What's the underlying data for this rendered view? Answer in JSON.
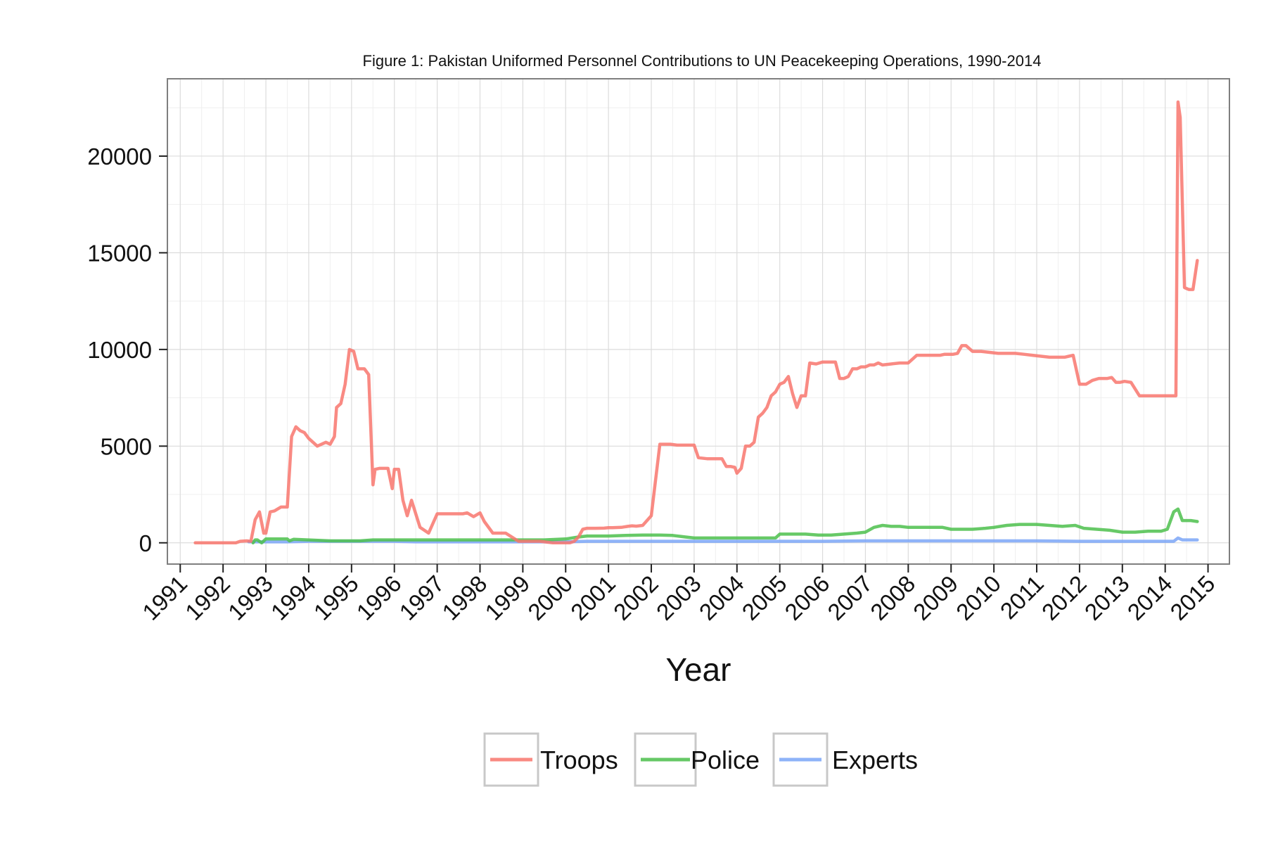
{
  "chart_data": {
    "type": "line",
    "title": "Figure 1: Pakistan Uniformed Personnel Contributions to UN Peacekeeping Operations, 1990-2014",
    "xlabel": "Year",
    "ylabel": "",
    "xlim": [
      1990.7,
      2015.5
    ],
    "ylim": [
      -1100,
      24000
    ],
    "x_ticks": [
      "1991",
      "1992",
      "1993",
      "1994",
      "1995",
      "1996",
      "1997",
      "1998",
      "1999",
      "2000",
      "2001",
      "2002",
      "2003",
      "2004",
      "2005",
      "2006",
      "2007",
      "2008",
      "2009",
      "2010",
      "2011",
      "2012",
      "2013",
      "2014",
      "2015"
    ],
    "y_ticks": [
      "0",
      "5000",
      "10000",
      "15000",
      "20000"
    ],
    "grid": true,
    "legend_position": "bottom",
    "series": [
      {
        "name": "Troops",
        "color": "#f8766d",
        "x": [
          1991.35,
          1991.8,
          1992.2,
          1992.3,
          1992.4,
          1992.55,
          1992.65,
          1992.75,
          1992.85,
          1992.95,
          1993.0,
          1993.1,
          1993.2,
          1993.35,
          1993.4,
          1993.5,
          1993.6,
          1993.7,
          1993.8,
          1993.9,
          1994.0,
          1994.1,
          1994.2,
          1994.3,
          1994.4,
          1994.5,
          1994.6,
          1994.65,
          1994.75,
          1994.85,
          1994.95,
          1995.05,
          1995.15,
          1995.25,
          1995.3,
          1995.4,
          1995.5,
          1995.55,
          1995.65,
          1995.75,
          1995.85,
          1995.95,
          1996.0,
          1996.1,
          1996.2,
          1996.3,
          1996.4,
          1996.6,
          1996.8,
          1997.0,
          1997.2,
          1997.3,
          1997.4,
          1997.5,
          1997.6,
          1997.7,
          1997.85,
          1998.0,
          1998.1,
          1998.3,
          1998.6,
          1998.9,
          1999.1,
          1999.4,
          1999.7,
          2000.0,
          2000.1,
          2000.2,
          2000.3,
          2000.4,
          2000.5,
          2000.7,
          2000.9,
          2001.0,
          2001.1,
          2001.3,
          2001.45,
          2001.55,
          2001.65,
          2001.8,
          2002.0,
          2002.2,
          2002.35,
          2002.45,
          2002.6,
          2002.8,
          2003.0,
          2003.1,
          2003.3,
          2003.45,
          2003.55,
          2003.65,
          2003.75,
          2003.85,
          2003.95,
          2004.0,
          2004.1,
          2004.2,
          2004.3,
          2004.4,
          2004.5,
          2004.6,
          2004.7,
          2004.8,
          2004.9,
          2005.0,
          2005.1,
          2005.2,
          2005.3,
          2005.4,
          2005.5,
          2005.6,
          2005.7,
          2005.85,
          2006.0,
          2006.1,
          2006.2,
          2006.3,
          2006.4,
          2006.5,
          2006.6,
          2006.7,
          2006.8,
          2006.9,
          2007.0,
          2007.1,
          2007.2,
          2007.3,
          2007.4,
          2007.6,
          2007.8,
          2008.0,
          2008.2,
          2008.4,
          2008.6,
          2008.75,
          2008.85,
          2008.95,
          2009.05,
          2009.15,
          2009.25,
          2009.35,
          2009.5,
          2009.7,
          2009.9,
          2010.1,
          2010.3,
          2010.5,
          2010.7,
          2010.9,
          2011.1,
          2011.3,
          2011.45,
          2011.55,
          2011.65,
          2011.75,
          2011.85,
          2012.0,
          2012.15,
          2012.3,
          2012.45,
          2012.55,
          2012.65,
          2012.75,
          2012.85,
          2012.95,
          2013.05,
          2013.2,
          2013.4,
          2013.6,
          2013.8,
          2013.95,
          2014.05,
          2014.15,
          2014.25,
          2014.3,
          2014.35,
          2014.45,
          2014.55,
          2014.65,
          2014.75
        ],
        "values": [
          0,
          0,
          0,
          0,
          80,
          100,
          80,
          1200,
          1600,
          500,
          500,
          1600,
          1650,
          1850,
          1850,
          1850,
          5500,
          6000,
          5800,
          5700,
          5400,
          5200,
          5000,
          5100,
          5200,
          5100,
          5500,
          7000,
          7200,
          8200,
          10000,
          9900,
          9000,
          9000,
          9000,
          8700,
          3000,
          3800,
          3850,
          3850,
          3850,
          2800,
          3800,
          3800,
          2200,
          1400,
          2200,
          800,
          500,
          1500,
          1500,
          1500,
          1500,
          1500,
          1500,
          1550,
          1350,
          1550,
          1100,
          500,
          500,
          80,
          80,
          80,
          0,
          0,
          0,
          80,
          300,
          700,
          750,
          750,
          760,
          780,
          780,
          800,
          850,
          880,
          860,
          900,
          1400,
          5100,
          5100,
          5100,
          5050,
          5050,
          5050,
          4400,
          4350,
          4350,
          4350,
          4350,
          3950,
          3950,
          3900,
          3600,
          3850,
          5000,
          5000,
          5200,
          6500,
          6700,
          7000,
          7600,
          7800,
          8200,
          8300,
          8600,
          7700,
          7000,
          7600,
          7600,
          9300,
          9250,
          9350,
          9350,
          9350,
          9350,
          8500,
          8500,
          8600,
          9000,
          9000,
          9100,
          9100,
          9200,
          9200,
          9300,
          9200,
          9250,
          9300,
          9300,
          9700,
          9700,
          9700,
          9700,
          9750,
          9750,
          9750,
          9800,
          10200,
          10200,
          9900,
          9900,
          9850,
          9800,
          9800,
          9800,
          9750,
          9700,
          9650,
          9600,
          9600,
          9600,
          9600,
          9650,
          9700,
          8200,
          8200,
          8400,
          8500,
          8500,
          8500,
          8550,
          8300,
          8300,
          8350,
          8300,
          7600,
          7600,
          7600,
          7600,
          7600,
          7600,
          7600,
          22800,
          22000,
          13200,
          13100,
          13100,
          14600
        ]
      },
      {
        "name": "Police",
        "color": "#4cbf4c",
        "x": [
          1992.7,
          1992.75,
          1992.8,
          1992.9,
          1993.0,
          1993.2,
          1993.5,
          1993.55,
          1993.65,
          1994.5,
          1994.7,
          1994.9,
          1995.0,
          1995.2,
          1995.5,
          1995.9,
          1996.4,
          1996.5,
          1997.0,
          1997.5,
          1997.9,
          1998.5,
          1999.0,
          1999.5,
          2000.0,
          2000.3,
          2000.5,
          2000.8,
          2001.0,
          2001.4,
          2001.8,
          2002.2,
          2002.5,
          2002.8,
          2003.0,
          2003.5,
          2004.0,
          2004.5,
          2004.9,
          2005.0,
          2005.3,
          2005.6,
          2005.9,
          2006.2,
          2006.5,
          2006.8,
          2007.0,
          2007.2,
          2007.4,
          2007.6,
          2007.8,
          2008.0,
          2008.4,
          2008.8,
          2009.0,
          2009.2,
          2009.5,
          2009.8,
          2010.0,
          2010.3,
          2010.6,
          2011.0,
          2011.3,
          2011.6,
          2011.9,
          2012.1,
          2012.4,
          2012.7,
          2013.0,
          2013.3,
          2013.6,
          2013.9,
          2014.05,
          2014.2,
          2014.3,
          2014.4,
          2014.5,
          2014.6,
          2014.75
        ],
        "values": [
          0,
          150,
          150,
          0,
          200,
          200,
          200,
          100,
          180,
          100,
          100,
          100,
          100,
          100,
          150,
          150,
          150,
          150,
          150,
          150,
          150,
          150,
          150,
          150,
          200,
          300,
          350,
          350,
          350,
          380,
          400,
          400,
          380,
          300,
          250,
          250,
          250,
          250,
          250,
          450,
          450,
          450,
          400,
          400,
          450,
          500,
          550,
          800,
          900,
          850,
          850,
          800,
          800,
          800,
          700,
          700,
          700,
          750,
          800,
          900,
          950,
          950,
          900,
          850,
          900,
          750,
          700,
          650,
          550,
          550,
          600,
          600,
          700,
          1600,
          1750,
          1150,
          1150,
          1150,
          1100
        ]
      },
      {
        "name": "Experts",
        "color": "#7ba6f7",
        "x": [
          1992.6,
          1993.0,
          1993.5,
          1994.0,
          1994.5,
          1995.0,
          1995.5,
          1996.0,
          1996.5,
          1997.0,
          1997.5,
          1998.0,
          1998.5,
          1999.0,
          1999.5,
          2000.0,
          2000.5,
          2001.0,
          2002.0,
          2003.0,
          2004.0,
          2005.0,
          2006.0,
          2007.0,
          2008.0,
          2009.0,
          2010.0,
          2011.0,
          2012.0,
          2013.0,
          2014.0,
          2014.2,
          2014.3,
          2014.4,
          2014.75
        ],
        "values": [
          50,
          50,
          50,
          80,
          80,
          80,
          80,
          80,
          50,
          50,
          50,
          50,
          50,
          50,
          50,
          50,
          80,
          80,
          80,
          80,
          80,
          80,
          80,
          100,
          100,
          100,
          100,
          100,
          80,
          80,
          80,
          80,
          250,
          150,
          150
        ]
      }
    ]
  }
}
